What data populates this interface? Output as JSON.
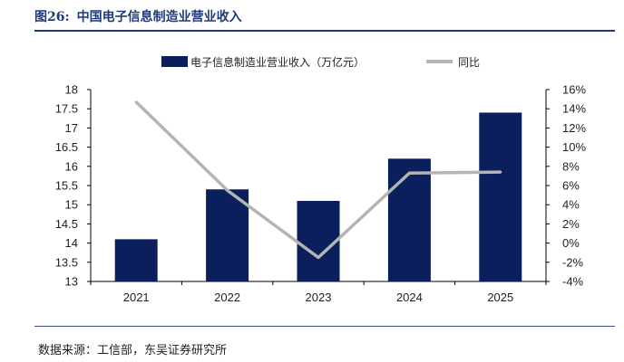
{
  "figure": {
    "number": "图26:",
    "title": "中国电子信息制造业营业收入"
  },
  "source": "数据来源：工信部，东吴证券研究所",
  "colors": {
    "bar": "#0b1f5c",
    "line": "#b4b4b4",
    "title": "#1f3a7a"
  },
  "chart_data": {
    "type": "bar+line",
    "categories": [
      "2021",
      "2022",
      "2023",
      "2024",
      "2025"
    ],
    "series": [
      {
        "name": "电子信息制造业营业收入（万亿元）",
        "type": "bar",
        "axis": "left",
        "values": [
          14.1,
          15.4,
          15.1,
          16.2,
          17.4
        ]
      },
      {
        "name": "同比",
        "type": "line",
        "axis": "right",
        "values": [
          14.7,
          5.5,
          -1.5,
          7.3,
          7.4
        ]
      }
    ],
    "y_left": {
      "min": 13,
      "max": 18,
      "step": 0.5,
      "ticks": [
        "13",
        "13.5",
        "14",
        "14.5",
        "15",
        "15.5",
        "16",
        "16.5",
        "17",
        "17.5",
        "18"
      ]
    },
    "y_right": {
      "min": -4,
      "max": 16,
      "step": 2,
      "unit": "%",
      "ticks": [
        "-4%",
        "-2%",
        "0%",
        "2%",
        "4%",
        "6%",
        "8%",
        "10%",
        "12%",
        "14%",
        "16%"
      ]
    },
    "legend_position": "top-center"
  }
}
